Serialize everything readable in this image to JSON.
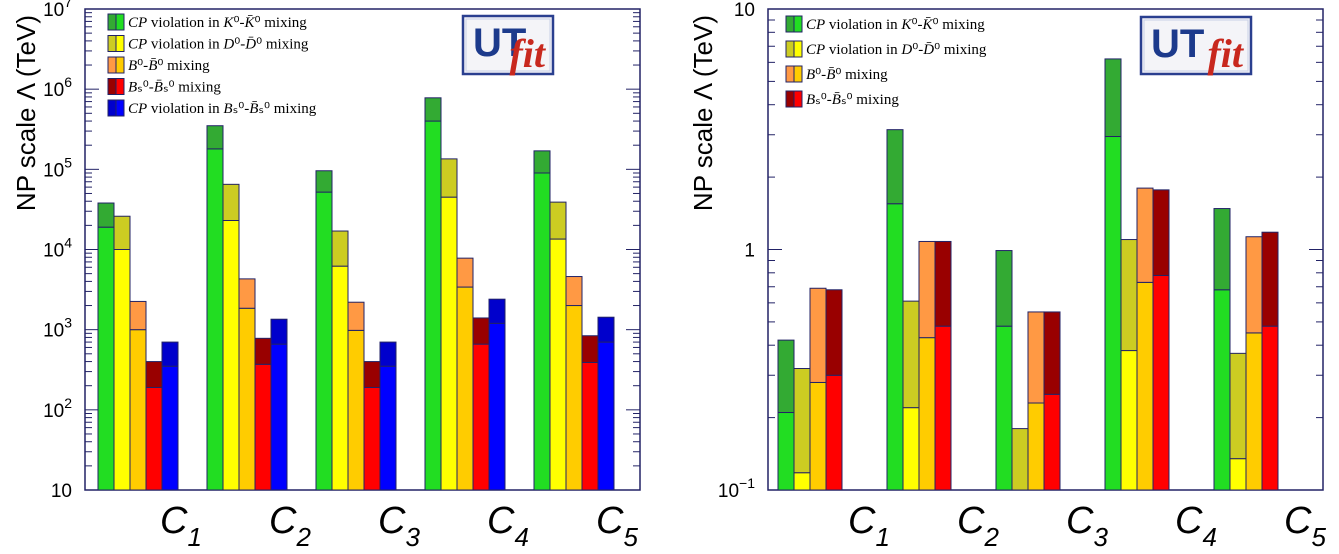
{
  "colors": {
    "green": "#22dd22",
    "green_dark": "#33aa33",
    "yellow": "#ffff00",
    "yellow_dark": "#cccc22",
    "orange": "#ffcc00",
    "orange_dark": "#ff9944",
    "red": "#ff0000",
    "red_dark": "#990000",
    "blue": "#0000ff",
    "blue_dark": "#0000cc",
    "frame": "#222266"
  },
  "logo": {
    "text_main": "UT",
    "text_fit": "fit"
  },
  "chart_data": [
    {
      "type": "bar",
      "scale": "log",
      "ylabel": "NP scale Λ (TeV)",
      "ylim": [
        10,
        10000000
      ],
      "y_ticks": [
        {
          "value": 10,
          "base": "10",
          "exp": ""
        },
        {
          "value": 100,
          "base": "10",
          "exp": "2"
        },
        {
          "value": 1000,
          "base": "10",
          "exp": "3"
        },
        {
          "value": 10000,
          "base": "10",
          "exp": "4"
        },
        {
          "value": 100000,
          "base": "10",
          "exp": "5"
        },
        {
          "value": 1000000,
          "base": "10",
          "exp": "6"
        },
        {
          "value": 10000000,
          "base": "10",
          "exp": "7"
        }
      ],
      "categories": [
        {
          "main": "C",
          "sub": "1"
        },
        {
          "main": "C",
          "sub": "2"
        },
        {
          "main": "C",
          "sub": "3"
        },
        {
          "main": "C",
          "sub": "4"
        },
        {
          "main": "C",
          "sub": "5"
        }
      ],
      "series": [
        {
          "name": "CP violation in K⁰-K̄⁰ mixing",
          "color": "green",
          "legend": [
            {
              "t": "CP",
              "i": true
            },
            {
              "t": " violation in ",
              "i": false
            },
            {
              "t": "K",
              "i": true
            },
            {
              "t": "⁰-",
              "i": false
            },
            {
              "t": "K̄",
              "i": true
            },
            {
              "t": "⁰ mixing",
              "i": false
            }
          ],
          "low": [
            19000,
            180000,
            52000,
            400000,
            90000
          ],
          "high": [
            38000,
            350000,
            96000,
            780000,
            170000
          ]
        },
        {
          "name": "CP violation in D⁰-D̄⁰ mixing",
          "color": "yellow",
          "legend": [
            {
              "t": "CP",
              "i": true
            },
            {
              "t": " violation in ",
              "i": false
            },
            {
              "t": "D",
              "i": true
            },
            {
              "t": "⁰-",
              "i": false
            },
            {
              "t": "D̄",
              "i": true
            },
            {
              "t": "⁰ mixing",
              "i": false
            }
          ],
          "low": [
            10000,
            23000,
            6200,
            45000,
            13500
          ],
          "high": [
            26000,
            65000,
            17000,
            135000,
            39000
          ]
        },
        {
          "name": "B⁰-B̄⁰ mixing",
          "color": "orange",
          "legend": [
            {
              "t": "B",
              "i": true
            },
            {
              "t": "⁰-",
              "i": false
            },
            {
              "t": "B̄",
              "i": true
            },
            {
              "t": "⁰ mixing",
              "i": false
            }
          ],
          "low": [
            1000,
            1850,
            980,
            3400,
            2000
          ],
          "high": [
            2250,
            4300,
            2200,
            7800,
            4600
          ]
        },
        {
          "name": "Bs⁰-B̄s⁰ mixing",
          "color": "red",
          "legend": [
            {
              "t": "B",
              "i": true
            },
            {
              "t": "ₛ⁰-",
              "i": false
            },
            {
              "t": "B̄",
              "i": true
            },
            {
              "t": "ₛ⁰ mixing",
              "i": false
            }
          ],
          "low": [
            190,
            370,
            190,
            660,
            390
          ],
          "high": [
            400,
            780,
            400,
            1400,
            840
          ]
        },
        {
          "name": "CP violation in Bs⁰-B̄s⁰ mixing",
          "color": "blue",
          "legend": [
            {
              "t": "CP",
              "i": true
            },
            {
              "t": " violation in ",
              "i": false
            },
            {
              "t": "B",
              "i": true
            },
            {
              "t": "ₛ⁰-",
              "i": false
            },
            {
              "t": "B̄",
              "i": true
            },
            {
              "t": "ₛ⁰ mixing",
              "i": false
            }
          ],
          "low": [
            350,
            660,
            350,
            1200,
            700
          ],
          "high": [
            700,
            1350,
            700,
            2400,
            1430
          ]
        }
      ]
    },
    {
      "type": "bar",
      "scale": "log",
      "ylabel": "NP scale Λ (TeV)",
      "ylim": [
        0.1,
        10
      ],
      "y_ticks": [
        {
          "value": 0.1,
          "base": "10",
          "exp": "−1"
        },
        {
          "value": 1,
          "base": "1",
          "exp": ""
        },
        {
          "value": 10,
          "base": "10",
          "exp": ""
        }
      ],
      "categories": [
        {
          "main": "C",
          "sub": "1"
        },
        {
          "main": "C",
          "sub": "2"
        },
        {
          "main": "C",
          "sub": "3"
        },
        {
          "main": "C",
          "sub": "4"
        },
        {
          "main": "C",
          "sub": "5"
        }
      ],
      "series": [
        {
          "name": "CP violation in K⁰-K̄⁰ mixing",
          "color": "green",
          "legend": [
            {
              "t": "CP",
              "i": true
            },
            {
              "t": " violation in ",
              "i": false
            },
            {
              "t": "K",
              "i": true
            },
            {
              "t": "⁰-",
              "i": false
            },
            {
              "t": "K̄",
              "i": true
            },
            {
              "t": "⁰ mixing",
              "i": false
            }
          ],
          "low": [
            0.21,
            1.55,
            0.48,
            2.95,
            0.68
          ],
          "high": [
            0.42,
            3.15,
            0.99,
            6.2,
            1.48
          ]
        },
        {
          "name": "CP violation in D⁰-D̄⁰ mixing",
          "color": "yellow",
          "legend": [
            {
              "t": "CP",
              "i": true
            },
            {
              "t": " violation in ",
              "i": false
            },
            {
              "t": "D",
              "i": true
            },
            {
              "t": "⁰-",
              "i": false
            },
            {
              "t": "D̄",
              "i": true
            },
            {
              "t": "⁰ mixing",
              "i": false
            }
          ],
          "low": [
            0.118,
            0.22,
            0.0,
            0.38,
            0.135
          ],
          "high": [
            0.32,
            0.61,
            0.18,
            1.1,
            0.37
          ]
        },
        {
          "name": "B⁰-B̄⁰ mixing",
          "color": "orange",
          "legend": [
            {
              "t": "B",
              "i": true
            },
            {
              "t": "⁰-",
              "i": false
            },
            {
              "t": "B̄",
              "i": true
            },
            {
              "t": "⁰ mixing",
              "i": false
            }
          ],
          "low": [
            0.28,
            0.43,
            0.23,
            0.73,
            0.45
          ],
          "high": [
            0.69,
            1.08,
            0.55,
            1.8,
            1.13
          ]
        },
        {
          "name": "Bs⁰-B̄s⁰ mixing",
          "color": "red",
          "legend": [
            {
              "t": "B",
              "i": true
            },
            {
              "t": "ₛ⁰-",
              "i": false
            },
            {
              "t": "B̄",
              "i": true
            },
            {
              "t": "ₛ⁰ mixing",
              "i": false
            }
          ],
          "low": [
            0.3,
            0.48,
            0.25,
            0.78,
            0.48
          ],
          "high": [
            0.68,
            1.08,
            0.55,
            1.77,
            1.18
          ]
        }
      ]
    }
  ]
}
